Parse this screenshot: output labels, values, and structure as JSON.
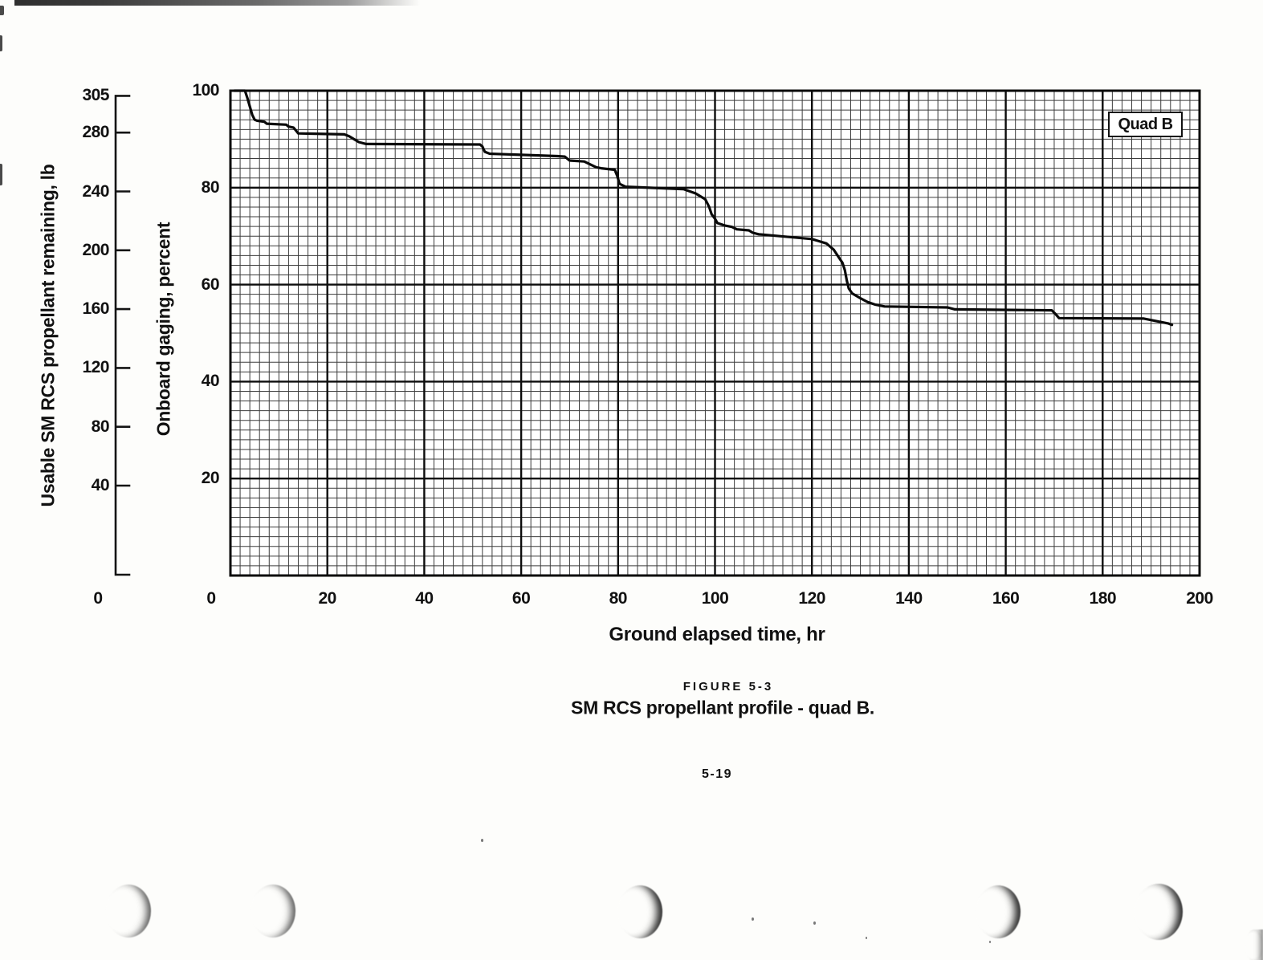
{
  "page": {
    "number": "5-19"
  },
  "figure": {
    "label": "FIGURE 5-3",
    "caption": "SM RCS propellant profile - quad B."
  },
  "legend": {
    "label": "Quad B"
  },
  "axes": {
    "x": {
      "title": "Ground elapsed time, hr",
      "min": 0,
      "max": 200,
      "ticks": [
        20,
        40,
        60,
        80,
        100,
        120,
        140,
        160,
        180,
        200
      ],
      "origin_label": "0"
    },
    "y_percent": {
      "title": "Onboard gaging, percent",
      "min": 0,
      "max": 100,
      "ticks": [
        100,
        80,
        60,
        40,
        20
      ],
      "origin_label": "0"
    },
    "y_lb": {
      "title": "Usable SM RCS propellant remaining, lb",
      "min": 0,
      "max": 305,
      "ticks": [
        305,
        280,
        240,
        200,
        160,
        120,
        80,
        40
      ],
      "origin_label": "0"
    }
  },
  "chart_data": {
    "type": "line",
    "title": "SM RCS propellant profile - quad B",
    "xlabel": "Ground elapsed time, hr",
    "ylabel": "Onboard gaging, percent",
    "ylabel2": "Usable SM RCS propellant remaining, lb",
    "xlim": [
      0,
      200
    ],
    "ylim": [
      0,
      100
    ],
    "ylim2_lb": [
      0,
      305
    ],
    "grid": "fine grid, minor every 2 units, major every 20 units",
    "legend_position": "top-right",
    "series": [
      {
        "name": "Quad B",
        "units": "percent onboard gaging vs ground elapsed time (hr)",
        "points": [
          [
            0.8,
            100
          ],
          [
            3,
            100
          ],
          [
            3.5,
            98.5
          ],
          [
            4.5,
            95
          ],
          [
            5,
            94
          ],
          [
            5.5,
            93.8
          ],
          [
            7,
            93.6
          ],
          [
            7.5,
            93.2
          ],
          [
            11.5,
            93
          ],
          [
            12,
            92.6
          ],
          [
            13,
            92.4
          ],
          [
            13.5,
            91.8
          ],
          [
            14,
            91.2
          ],
          [
            23.5,
            91
          ],
          [
            24.5,
            90.6
          ],
          [
            26.5,
            89.4
          ],
          [
            28,
            89
          ],
          [
            51.5,
            88.9
          ],
          [
            52,
            88.5
          ],
          [
            52.5,
            87.4
          ],
          [
            53.5,
            87
          ],
          [
            67.5,
            86.5
          ],
          [
            69,
            86.4
          ],
          [
            70,
            85.6
          ],
          [
            73,
            85.4
          ],
          [
            75.5,
            84.2
          ],
          [
            76.5,
            84
          ],
          [
            79.3,
            83.7
          ],
          [
            79.8,
            82.5
          ],
          [
            80.3,
            80.8
          ],
          [
            81.5,
            80.2
          ],
          [
            93.5,
            79.7
          ],
          [
            96,
            78.8
          ],
          [
            98,
            77.6
          ],
          [
            98.8,
            76
          ],
          [
            99.3,
            74.5
          ],
          [
            100,
            73.6
          ],
          [
            100.5,
            72.7
          ],
          [
            102,
            72.2
          ],
          [
            103.5,
            71.9
          ],
          [
            104.5,
            71.4
          ],
          [
            107,
            71.2
          ],
          [
            107.8,
            70.7
          ],
          [
            109,
            70.4
          ],
          [
            120,
            69.4
          ],
          [
            123,
            68.5
          ],
          [
            124.5,
            67.2
          ],
          [
            125.5,
            65.7
          ],
          [
            126.3,
            64.5
          ],
          [
            126.8,
            63
          ],
          [
            127.2,
            60.8
          ],
          [
            127.6,
            59.2
          ],
          [
            128.3,
            58.2
          ],
          [
            130,
            57.2
          ],
          [
            131.5,
            56.4
          ],
          [
            133,
            55.9
          ],
          [
            135,
            55.5
          ],
          [
            148,
            55.3
          ],
          [
            149.5,
            54.9
          ],
          [
            169.5,
            54.7
          ],
          [
            170.3,
            53.9
          ],
          [
            171,
            53.1
          ],
          [
            188.5,
            53
          ],
          [
            191,
            52.5
          ],
          [
            193.5,
            52
          ],
          [
            194.3,
            51.7
          ]
        ]
      }
    ]
  }
}
